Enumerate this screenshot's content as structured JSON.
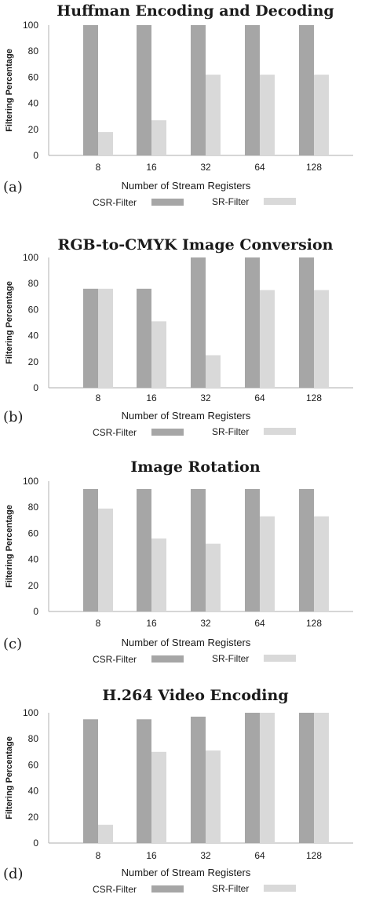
{
  "colors": {
    "csr": "#a6a6a6",
    "sr": "#d9d9d9",
    "axis": "#bdbdbd",
    "text": "#1a1a1a"
  },
  "chart_data": [
    {
      "type": "bar",
      "panel": "(a)",
      "title": "Huffman Encoding and Decoding",
      "xlabel": "Number of Stream Registers",
      "ylabel": "Filtering Percentage",
      "categories": [
        "8",
        "16",
        "32",
        "64",
        "128"
      ],
      "ylim": [
        0,
        100
      ],
      "yticks": [
        0,
        20,
        40,
        60,
        80,
        100
      ],
      "legend_position": "bottom",
      "series": [
        {
          "name": "CSR-Filter",
          "values": [
            100,
            100,
            100,
            100,
            100
          ]
        },
        {
          "name": "SR-Filter",
          "values": [
            18,
            27,
            62,
            62,
            62
          ]
        }
      ]
    },
    {
      "type": "bar",
      "panel": "(b)",
      "title": "RGB-to-CMYK Image Conversion",
      "xlabel": "Number of Stream Registers",
      "ylabel": "Filtering Percentage",
      "categories": [
        "8",
        "16",
        "32",
        "64",
        "128"
      ],
      "ylim": [
        0,
        100
      ],
      "yticks": [
        0,
        20,
        40,
        60,
        80,
        100
      ],
      "legend_position": "bottom",
      "series": [
        {
          "name": "CSR-Filter",
          "values": [
            76,
            76,
            100,
            100,
            100
          ]
        },
        {
          "name": "SR-Filter",
          "values": [
            76,
            51,
            25,
            75,
            75
          ]
        }
      ]
    },
    {
      "type": "bar",
      "panel": "(c)",
      "title": "Image Rotation",
      "xlabel": "Number of Stream Registers",
      "ylabel": "Filtering Percentage",
      "categories": [
        "8",
        "16",
        "32",
        "64",
        "128"
      ],
      "ylim": [
        0,
        100
      ],
      "yticks": [
        0,
        20,
        40,
        60,
        80,
        100
      ],
      "legend_position": "bottom",
      "series": [
        {
          "name": "CSR-Filter",
          "values": [
            94,
            94,
            94,
            94,
            94
          ]
        },
        {
          "name": "SR-Filter",
          "values": [
            79,
            56,
            52,
            73,
            73
          ]
        }
      ]
    },
    {
      "type": "bar",
      "panel": "(d)",
      "title": "H.264 Video Encoding",
      "xlabel": "Number of Stream Registers",
      "ylabel": "Filtering Percentage",
      "categories": [
        "8",
        "16",
        "32",
        "64",
        "128"
      ],
      "ylim": [
        0,
        100
      ],
      "yticks": [
        0,
        20,
        40,
        60,
        80,
        100
      ],
      "legend_position": "bottom",
      "series": [
        {
          "name": "CSR-Filter",
          "values": [
            95,
            95,
            97,
            100,
            100
          ]
        },
        {
          "name": "SR-Filter",
          "values": [
            14,
            70,
            71,
            100,
            100
          ]
        }
      ]
    }
  ]
}
